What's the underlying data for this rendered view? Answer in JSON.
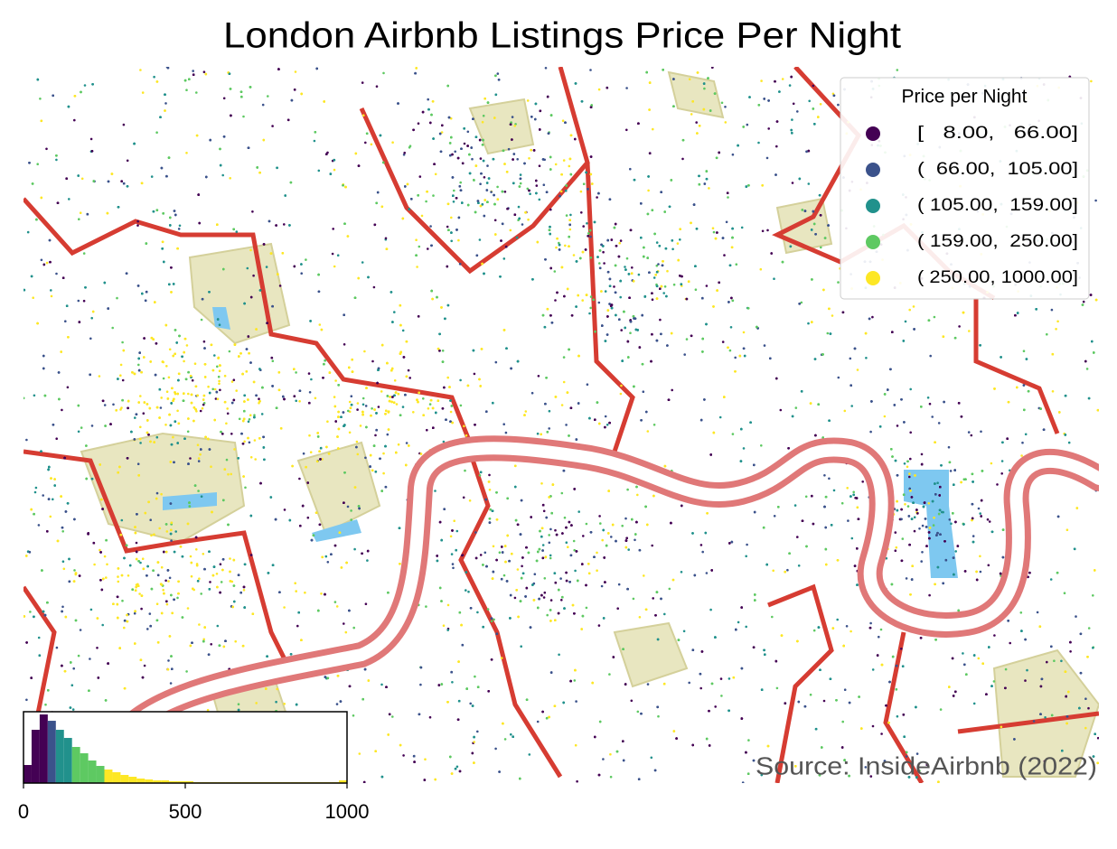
{
  "chart_data": {
    "type": "map",
    "title": "London Airbnb Listings Price Per Night",
    "legend": {
      "title": "Price per Night",
      "corner": "upper right",
      "entries": [
        {
          "label": "[   8.00,   66.00]",
          "lower": 8,
          "upper": 66,
          "color": "#440154"
        },
        {
          "label": "(  66.00,  105.00]",
          "lower": 66,
          "upper": 105,
          "color": "#3b528b"
        },
        {
          "label": "( 105.00,  159.00]",
          "lower": 105,
          "upper": 159,
          "color": "#21918c"
        },
        {
          "label": "( 159.00,  250.00]",
          "lower": 159,
          "upper": 250,
          "color": "#5ec962"
        },
        {
          "label": "( 250.00, 1000.00]",
          "lower": 250,
          "upper": 1000,
          "color": "#fde725"
        }
      ]
    },
    "annotation": "Source: InsideAirbnb (2022)",
    "histogram": {
      "type": "histogram",
      "bins": [
        0,
        25,
        50,
        75,
        100,
        125,
        150,
        175,
        200,
        225,
        250,
        275,
        300,
        325,
        350,
        375,
        400,
        425,
        450,
        475,
        500,
        525,
        550,
        575,
        600,
        625,
        650,
        675,
        700,
        725,
        750,
        775,
        800,
        825,
        850,
        875,
        900,
        925,
        950,
        975,
        1000
      ],
      "counts": [
        20,
        59,
        76,
        69,
        59,
        50,
        40,
        33,
        25,
        19,
        15,
        12,
        9,
        7,
        5,
        4,
        3,
        3,
        2,
        2,
        2,
        1,
        1,
        1,
        1,
        1,
        1,
        1,
        1,
        1,
        1,
        1,
        1,
        1,
        1,
        1,
        1,
        1,
        1,
        3
      ],
      "xlim": [
        0,
        1000
      ],
      "xticks": [
        0,
        500,
        1000
      ]
    }
  }
}
